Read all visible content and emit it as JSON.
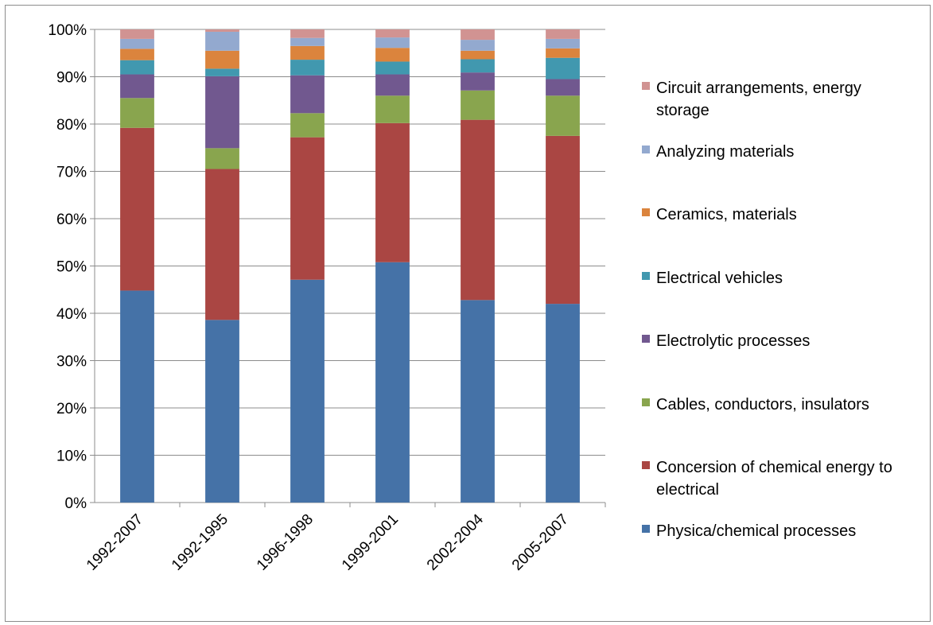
{
  "chart_data": {
    "type": "bar",
    "stacked": true,
    "percent": true,
    "categories": [
      "1992-2007",
      "1992-1995",
      "1996-1998",
      "1999-2001",
      "2002-2004",
      "2005-2007"
    ],
    "ylim": [
      0,
      100
    ],
    "yticks": [
      "0%",
      "10%",
      "20%",
      "30%",
      "40%",
      "50%",
      "60%",
      "70%",
      "80%",
      "90%",
      "100%"
    ],
    "grid": true,
    "legend_position": "right",
    "series": [
      {
        "name": "Physica/chemical processes",
        "color": "#4572A7",
        "values": [
          44.8,
          38.6,
          47.1,
          50.8,
          42.8,
          42.0
        ]
      },
      {
        "name": "Concersion of chemical energy to electrical",
        "color": "#AA4643",
        "values": [
          34.4,
          31.9,
          30.1,
          29.4,
          38.1,
          35.5
        ]
      },
      {
        "name": "Cables, conductors, insulators",
        "color": "#89A54E",
        "values": [
          6.3,
          4.4,
          5.1,
          5.8,
          6.2,
          8.5
        ]
      },
      {
        "name": "Electrolytic processes",
        "color": "#71588F",
        "values": [
          5.0,
          15.2,
          8.0,
          4.5,
          3.8,
          3.5
        ]
      },
      {
        "name": "Electrical vehicles",
        "color": "#4198AF",
        "values": [
          3.0,
          1.6,
          3.3,
          2.7,
          2.8,
          4.5
        ]
      },
      {
        "name": "Ceramics, materials",
        "color": "#DB843D",
        "values": [
          2.4,
          3.8,
          2.9,
          2.9,
          1.8,
          2.0
        ]
      },
      {
        "name": "Analyzing materials",
        "color": "#93A9CF",
        "values": [
          2.1,
          4.0,
          1.7,
          2.2,
          2.3,
          2.0
        ]
      },
      {
        "name": "Circuit arrangements, energy storage",
        "color": "#D19392",
        "values": [
          2.0,
          0.5,
          1.8,
          1.7,
          2.2,
          2.0
        ]
      }
    ]
  }
}
